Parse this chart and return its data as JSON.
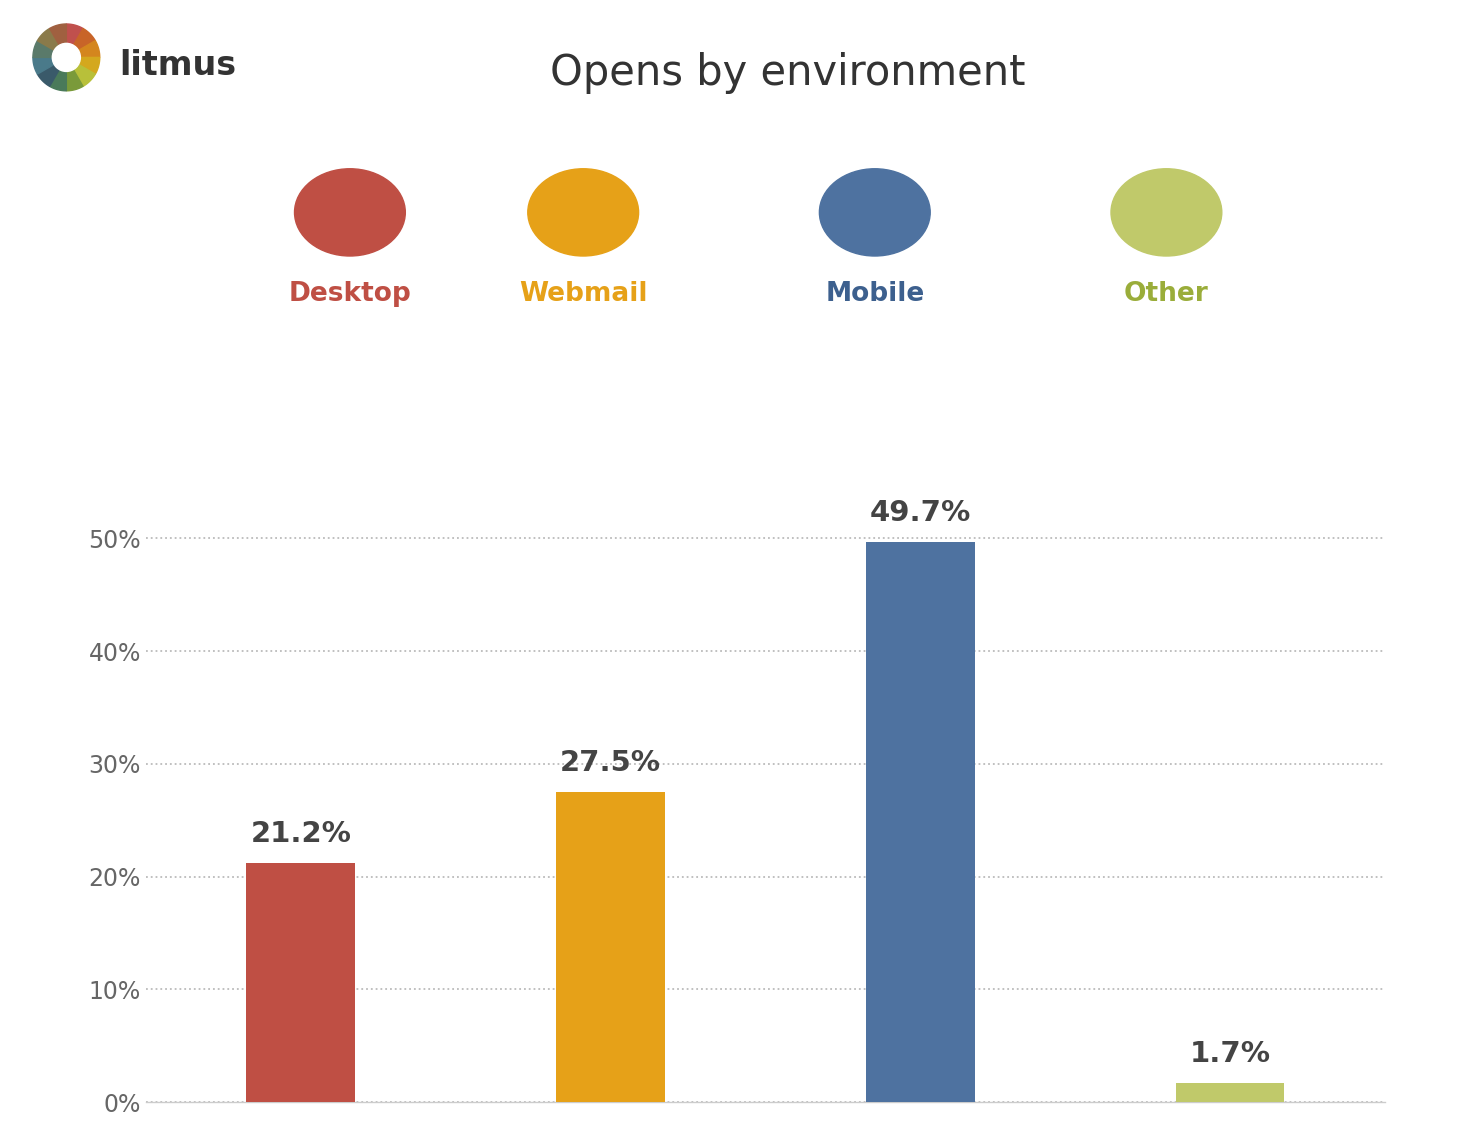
{
  "title": "Opens by environment",
  "categories": [
    "Desktop",
    "Webmail",
    "Mobile",
    "Other"
  ],
  "values": [
    21.2,
    27.5,
    49.7,
    1.7
  ],
  "bar_colors": [
    "#bf4f44",
    "#e6a118",
    "#4e72a0",
    "#c0c96a"
  ],
  "label_colors": [
    "#bf4f44",
    "#e6a118",
    "#3d608e",
    "#9aad3a"
  ],
  "value_labels": [
    "21.2%",
    "27.5%",
    "49.7%",
    "1.7%"
  ],
  "yticks": [
    0,
    10,
    20,
    30,
    40,
    50
  ],
  "ytick_labels": [
    "0%",
    "10%",
    "20%",
    "30%",
    "40%",
    "50%"
  ],
  "ylim": [
    0,
    56
  ],
  "background_color": "#ffffff",
  "grid_color": "#bbbbbb",
  "title_fontsize": 30,
  "label_fontsize": 19,
  "value_fontsize": 21,
  "ytick_fontsize": 17,
  "bar_width": 0.42,
  "wheel_colors": [
    "#c0504d",
    "#c86428",
    "#d4861e",
    "#d4a81e",
    "#b8c03a",
    "#7a9a3a",
    "#4a7a5a",
    "#3a5a6a",
    "#4a7a8a",
    "#5a7a6a",
    "#8a7a4a",
    "#a06040"
  ],
  "icon_circle_colors": [
    "#bf4f44",
    "#e6a118",
    "#4e72a0",
    "#c0c96a"
  ],
  "logo_text_color": "#333333",
  "title_color": "#333333",
  "value_label_color": "#444444"
}
